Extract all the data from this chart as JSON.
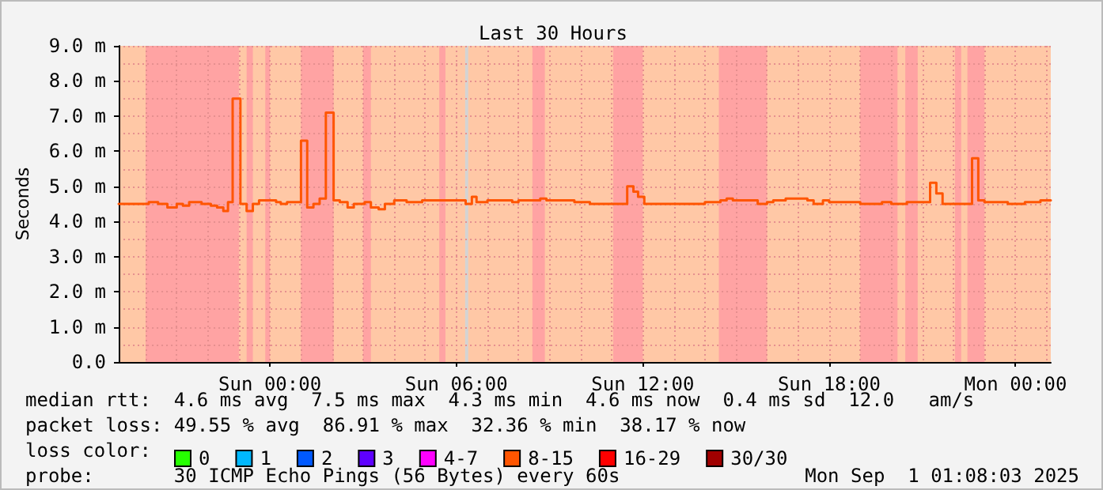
{
  "chart_data": {
    "type": "step",
    "title": "Last 30 Hours",
    "ylabel": "Seconds",
    "xlim": [
      "2025-08-30T19:08",
      "2025-09-01T01:08"
    ],
    "xticks": [
      {
        "value": "2025-08-31T00:00",
        "label": "Sun 00:00"
      },
      {
        "value": "2025-08-31T06:00",
        "label": "Sun 06:00"
      },
      {
        "value": "2025-08-31T12:00",
        "label": "Sun 12:00"
      },
      {
        "value": "2025-08-31T18:00",
        "label": "Sun 18:00"
      },
      {
        "value": "2025-09-01T00:00",
        "label": "Mon 00:00"
      }
    ],
    "ylim": [
      0,
      9
    ],
    "yticks": [
      {
        "value": 0,
        "label": "0.0"
      },
      {
        "value": 1,
        "label": "1.0 m"
      },
      {
        "value": 2,
        "label": "2.0 m"
      },
      {
        "value": 3,
        "label": "3.0 m"
      },
      {
        "value": 4,
        "label": "4.0 m"
      },
      {
        "value": 5,
        "label": "5.0 m"
      },
      {
        "value": 6,
        "label": "6.0 m"
      },
      {
        "value": 7,
        "label": "7.0 m"
      },
      {
        "value": 8,
        "label": "8.0 m"
      },
      {
        "value": 9,
        "label": "9.0 m"
      }
    ],
    "grid": true,
    "marker": "none",
    "line_style": "solid",
    "legend": "bottom",
    "legend_title": "loss color:",
    "series": [
      {
        "color": "#ff5500",
        "x": [
          "2025-08-30T19:08",
          "2025-08-30T19:24",
          "2025-08-30T20:06",
          "2025-08-30T20:24",
          "2025-08-30T20:42",
          "2025-08-30T21:00",
          "2025-08-30T21:12",
          "2025-08-30T21:24",
          "2025-08-30T21:48",
          "2025-08-30T22:06",
          "2025-08-30T22:18",
          "2025-08-30T22:30",
          "2025-08-30T22:39",
          "2025-08-30T22:48",
          "2025-08-30T23:03",
          "2025-08-30T23:15",
          "2025-08-30T23:27",
          "2025-08-30T23:39",
          "2025-08-31T00:00",
          "2025-08-31T00:12",
          "2025-08-31T00:21",
          "2025-08-31T00:33",
          "2025-08-31T01:00",
          "2025-08-31T01:12",
          "2025-08-31T01:24",
          "2025-08-31T01:36",
          "2025-08-31T01:48",
          "2025-08-31T02:03",
          "2025-08-31T02:15",
          "2025-08-31T02:30",
          "2025-08-31T02:42",
          "2025-08-31T03:03",
          "2025-08-31T03:15",
          "2025-08-31T03:30",
          "2025-08-31T03:42",
          "2025-08-31T04:00",
          "2025-08-31T04:24",
          "2025-08-31T04:54",
          "2025-08-31T05:30",
          "2025-08-31T06:18",
          "2025-08-31T06:30",
          "2025-08-31T06:39",
          "2025-08-31T07:00",
          "2025-08-31T07:48",
          "2025-08-31T08:00",
          "2025-08-31T08:30",
          "2025-08-31T08:42",
          "2025-08-31T08:54",
          "2025-08-31T09:48",
          "2025-08-31T10:18",
          "2025-08-31T11:00",
          "2025-08-31T11:30",
          "2025-08-31T11:42",
          "2025-08-31T11:51",
          "2025-08-31T12:03",
          "2025-08-31T14:00",
          "2025-08-31T14:30",
          "2025-08-31T14:42",
          "2025-08-31T14:54",
          "2025-08-31T15:24",
          "2025-08-31T15:42",
          "2025-08-31T16:00",
          "2025-08-31T16:12",
          "2025-08-31T16:36",
          "2025-08-31T17:18",
          "2025-08-31T17:30",
          "2025-08-31T17:48",
          "2025-08-31T18:00",
          "2025-08-31T19:00",
          "2025-08-31T19:42",
          "2025-08-31T20:00",
          "2025-08-31T20:30",
          "2025-08-31T21:15",
          "2025-08-31T21:27",
          "2025-08-31T21:39",
          "2025-08-31T22:36",
          "2025-08-31T22:48",
          "2025-08-31T23:00",
          "2025-08-31T23:30",
          "2025-08-31T23:45",
          "2025-09-01T00:18",
          "2025-09-01T00:48",
          "2025-09-01T01:08"
        ],
        "values": [
          4.5,
          4.5,
          4.55,
          4.5,
          4.4,
          4.5,
          4.45,
          4.55,
          4.5,
          4.45,
          4.4,
          4.3,
          4.55,
          7.5,
          4.5,
          4.3,
          4.5,
          4.6,
          4.6,
          4.55,
          4.5,
          4.55,
          6.3,
          4.4,
          4.5,
          4.65,
          7.1,
          4.6,
          4.55,
          4.4,
          4.5,
          4.55,
          4.4,
          4.35,
          4.5,
          4.6,
          4.55,
          4.6,
          4.6,
          4.5,
          4.7,
          4.55,
          4.6,
          4.55,
          4.6,
          4.6,
          4.65,
          4.6,
          4.55,
          4.5,
          4.5,
          5.0,
          4.85,
          4.7,
          4.5,
          4.55,
          4.6,
          4.65,
          4.6,
          4.6,
          4.5,
          4.55,
          4.6,
          4.65,
          4.6,
          4.5,
          4.6,
          4.55,
          4.5,
          4.55,
          4.5,
          4.55,
          5.1,
          4.8,
          4.5,
          5.8,
          4.6,
          4.55,
          4.55,
          4.5,
          4.55,
          4.6,
          4.6
        ]
      },
      {
        "type": "line",
        "name": "0",
        "color": "#26ff00"
      },
      {
        "type": "line",
        "name": "1",
        "color": "#00b8ff"
      },
      {
        "type": "line",
        "name": "2",
        "color": "#0059ff"
      },
      {
        "type": "line",
        "name": "3",
        "color": "#5e00ff"
      },
      {
        "type": "line",
        "name": "4-7",
        "color": "#ff00fe"
      },
      {
        "type": "line",
        "name": "8-15",
        "color": "#ff5500"
      },
      {
        "type": "line",
        "name": "16-29",
        "color": "#ff0000"
      },
      {
        "type": "line",
        "name": "30/30",
        "color": "#a10000"
      }
    ],
    "bands": [
      {
        "axis": "x",
        "from": "2025-08-30T19:08",
        "to": "2025-09-01T01:08",
        "color": "#ffc8a6"
      },
      {
        "axis": "x",
        "from": "2025-08-30T20:00",
        "to": "2025-08-30T23:00",
        "color": "#ffa3a3"
      },
      {
        "axis": "x",
        "from": "2025-08-30T23:15",
        "to": "2025-08-30T23:27",
        "color": "#ffa3a3"
      },
      {
        "axis": "x",
        "from": "2025-08-30T23:51",
        "to": "2025-08-31T00:00",
        "color": "#ffa3a3"
      },
      {
        "axis": "x",
        "from": "2025-08-31T01:00",
        "to": "2025-08-31T02:03",
        "color": "#ffa3a3"
      },
      {
        "axis": "x",
        "from": "2025-08-31T03:00",
        "to": "2025-08-31T03:15",
        "color": "#ffa3a3"
      },
      {
        "axis": "x",
        "from": "2025-08-31T05:27",
        "to": "2025-08-31T05:39",
        "color": "#ffa3a3"
      },
      {
        "axis": "x",
        "from": "2025-08-31T06:17",
        "to": "2025-08-31T06:23",
        "color": "#d4d4d4"
      },
      {
        "axis": "x",
        "from": "2025-08-31T08:27",
        "to": "2025-08-31T08:51",
        "color": "#ffa3a3"
      },
      {
        "axis": "x",
        "from": "2025-08-31T11:03",
        "to": "2025-08-31T12:00",
        "color": "#ffa3a3"
      },
      {
        "axis": "x",
        "from": "2025-08-31T14:27",
        "to": "2025-08-31T16:00",
        "color": "#ffa3a3"
      },
      {
        "axis": "x",
        "from": "2025-08-31T19:00",
        "to": "2025-08-31T20:12",
        "color": "#ffa3a3"
      },
      {
        "axis": "x",
        "from": "2025-08-31T20:27",
        "to": "2025-08-31T20:51",
        "color": "#ffa3a3"
      },
      {
        "axis": "x",
        "from": "2025-08-31T22:03",
        "to": "2025-08-31T22:15",
        "color": "#ffa3a3"
      },
      {
        "axis": "x",
        "from": "2025-08-31T22:27",
        "to": "2025-08-31T23:00",
        "color": "#ffa3a3"
      }
    ],
    "annotations": [
      "median rtt:  4.6 ms avg  7.5 ms max  4.3 ms min  4.6 ms now  0.4 ms sd  12.0   am/s",
      "packet loss: 49.55 % avg  86.91 % max  32.36 % min  38.17 % now",
      "probe:       30 ICMP Echo Pings (56 Bytes) every 60s",
      "Mon Sep  1 01:08:03 2025"
    ]
  }
}
